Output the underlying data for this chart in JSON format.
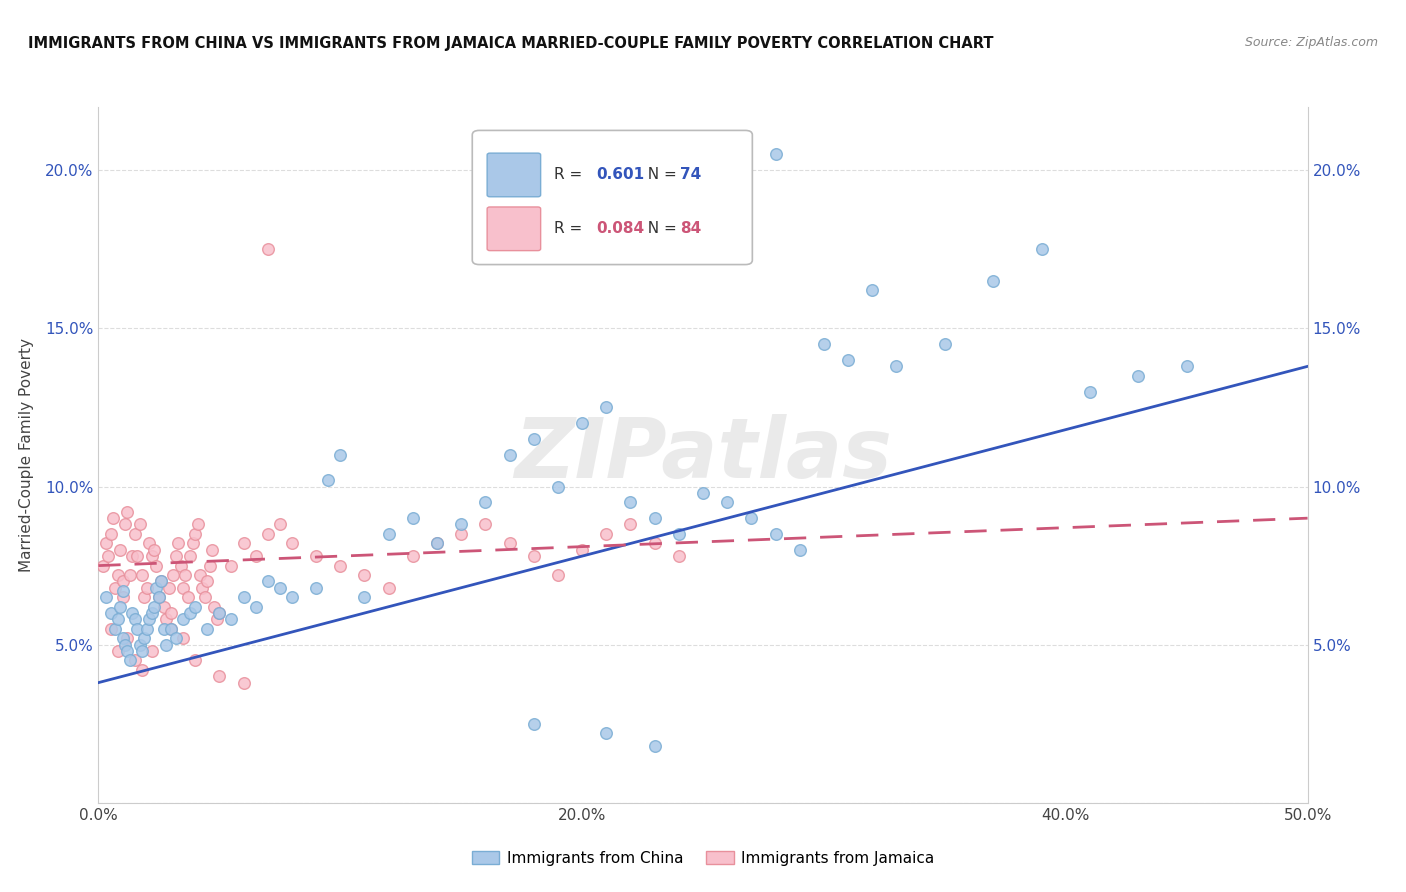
{
  "title": "IMMIGRANTS FROM CHINA VS IMMIGRANTS FROM JAMAICA MARRIED-COUPLE FAMILY POVERTY CORRELATION CHART",
  "source": "Source: ZipAtlas.com",
  "ylabel": "Married-Couple Family Poverty",
  "xmin": 0.0,
  "xmax": 0.5,
  "ymin": 0.0,
  "ymax": 0.22,
  "yticks": [
    0.0,
    0.05,
    0.1,
    0.15,
    0.2
  ],
  "ytick_labels": [
    "",
    "5.0%",
    "10.0%",
    "15.0%",
    "20.0%"
  ],
  "xticks": [
    0.0,
    0.1,
    0.2,
    0.3,
    0.4,
    0.5
  ],
  "xtick_labels": [
    "0.0%",
    "",
    "20.0%",
    "",
    "40.0%",
    "50.0%"
  ],
  "china_scatter_x": [
    0.003,
    0.005,
    0.007,
    0.008,
    0.009,
    0.01,
    0.01,
    0.011,
    0.012,
    0.013,
    0.014,
    0.015,
    0.016,
    0.017,
    0.018,
    0.019,
    0.02,
    0.021,
    0.022,
    0.023,
    0.024,
    0.025,
    0.026,
    0.027,
    0.028,
    0.03,
    0.032,
    0.035,
    0.038,
    0.04,
    0.045,
    0.05,
    0.055,
    0.06,
    0.065,
    0.07,
    0.075,
    0.08,
    0.09,
    0.095,
    0.1,
    0.11,
    0.12,
    0.13,
    0.14,
    0.15,
    0.16,
    0.17,
    0.18,
    0.19,
    0.2,
    0.21,
    0.22,
    0.23,
    0.24,
    0.25,
    0.26,
    0.27,
    0.28,
    0.29,
    0.3,
    0.31,
    0.32,
    0.33,
    0.35,
    0.37,
    0.39,
    0.41,
    0.43,
    0.45,
    0.28,
    0.23,
    0.21,
    0.18
  ],
  "china_scatter_y": [
    0.065,
    0.06,
    0.055,
    0.058,
    0.062,
    0.052,
    0.067,
    0.05,
    0.048,
    0.045,
    0.06,
    0.058,
    0.055,
    0.05,
    0.048,
    0.052,
    0.055,
    0.058,
    0.06,
    0.062,
    0.068,
    0.065,
    0.07,
    0.055,
    0.05,
    0.055,
    0.052,
    0.058,
    0.06,
    0.062,
    0.055,
    0.06,
    0.058,
    0.065,
    0.062,
    0.07,
    0.068,
    0.065,
    0.068,
    0.102,
    0.11,
    0.065,
    0.085,
    0.09,
    0.082,
    0.088,
    0.095,
    0.11,
    0.115,
    0.1,
    0.12,
    0.125,
    0.095,
    0.09,
    0.085,
    0.098,
    0.095,
    0.09,
    0.085,
    0.08,
    0.145,
    0.14,
    0.162,
    0.138,
    0.145,
    0.165,
    0.175,
    0.13,
    0.135,
    0.138,
    0.205,
    0.018,
    0.022,
    0.025
  ],
  "jamaica_scatter_x": [
    0.002,
    0.003,
    0.004,
    0.005,
    0.006,
    0.007,
    0.008,
    0.009,
    0.01,
    0.01,
    0.011,
    0.012,
    0.013,
    0.014,
    0.015,
    0.016,
    0.017,
    0.018,
    0.019,
    0.02,
    0.021,
    0.022,
    0.023,
    0.024,
    0.025,
    0.026,
    0.027,
    0.028,
    0.029,
    0.03,
    0.031,
    0.032,
    0.033,
    0.034,
    0.035,
    0.036,
    0.037,
    0.038,
    0.039,
    0.04,
    0.041,
    0.042,
    0.043,
    0.044,
    0.045,
    0.046,
    0.047,
    0.048,
    0.049,
    0.05,
    0.055,
    0.06,
    0.065,
    0.07,
    0.075,
    0.08,
    0.09,
    0.1,
    0.11,
    0.12,
    0.13,
    0.14,
    0.15,
    0.16,
    0.17,
    0.18,
    0.19,
    0.2,
    0.21,
    0.22,
    0.23,
    0.24,
    0.005,
    0.008,
    0.012,
    0.015,
    0.018,
    0.022,
    0.03,
    0.035,
    0.04,
    0.05,
    0.06,
    0.07
  ],
  "jamaica_scatter_y": [
    0.075,
    0.082,
    0.078,
    0.085,
    0.09,
    0.068,
    0.072,
    0.08,
    0.065,
    0.07,
    0.088,
    0.092,
    0.072,
    0.078,
    0.085,
    0.078,
    0.088,
    0.072,
    0.065,
    0.068,
    0.082,
    0.078,
    0.08,
    0.075,
    0.065,
    0.07,
    0.062,
    0.058,
    0.068,
    0.06,
    0.072,
    0.078,
    0.082,
    0.075,
    0.068,
    0.072,
    0.065,
    0.078,
    0.082,
    0.085,
    0.088,
    0.072,
    0.068,
    0.065,
    0.07,
    0.075,
    0.08,
    0.062,
    0.058,
    0.06,
    0.075,
    0.082,
    0.078,
    0.085,
    0.088,
    0.082,
    0.078,
    0.075,
    0.072,
    0.068,
    0.078,
    0.082,
    0.085,
    0.088,
    0.082,
    0.078,
    0.072,
    0.08,
    0.085,
    0.088,
    0.082,
    0.078,
    0.055,
    0.048,
    0.052,
    0.045,
    0.042,
    0.048,
    0.055,
    0.052,
    0.045,
    0.04,
    0.038,
    0.175
  ],
  "china_line_x": [
    0.0,
    0.5
  ],
  "china_line_y": [
    0.038,
    0.138
  ],
  "jamaica_line_x": [
    0.0,
    0.5
  ],
  "jamaica_line_y": [
    0.075,
    0.09
  ],
  "bg_color": "#ffffff",
  "grid_color": "#dddddd",
  "china_color": "#aac8e8",
  "china_edge": "#7aadd4",
  "jamaica_color": "#f8c0cc",
  "jamaica_edge": "#e8909c",
  "china_line_color": "#3355bb",
  "jamaica_line_color": "#cc5577",
  "watermark": "ZIPatlas",
  "marker_size": 70,
  "R_china": "0.601",
  "N_china": "74",
  "R_jamaica": "0.084",
  "N_jamaica": "84",
  "legend_label_china": "Immigrants from China",
  "legend_label_jamaica": "Immigrants from Jamaica"
}
